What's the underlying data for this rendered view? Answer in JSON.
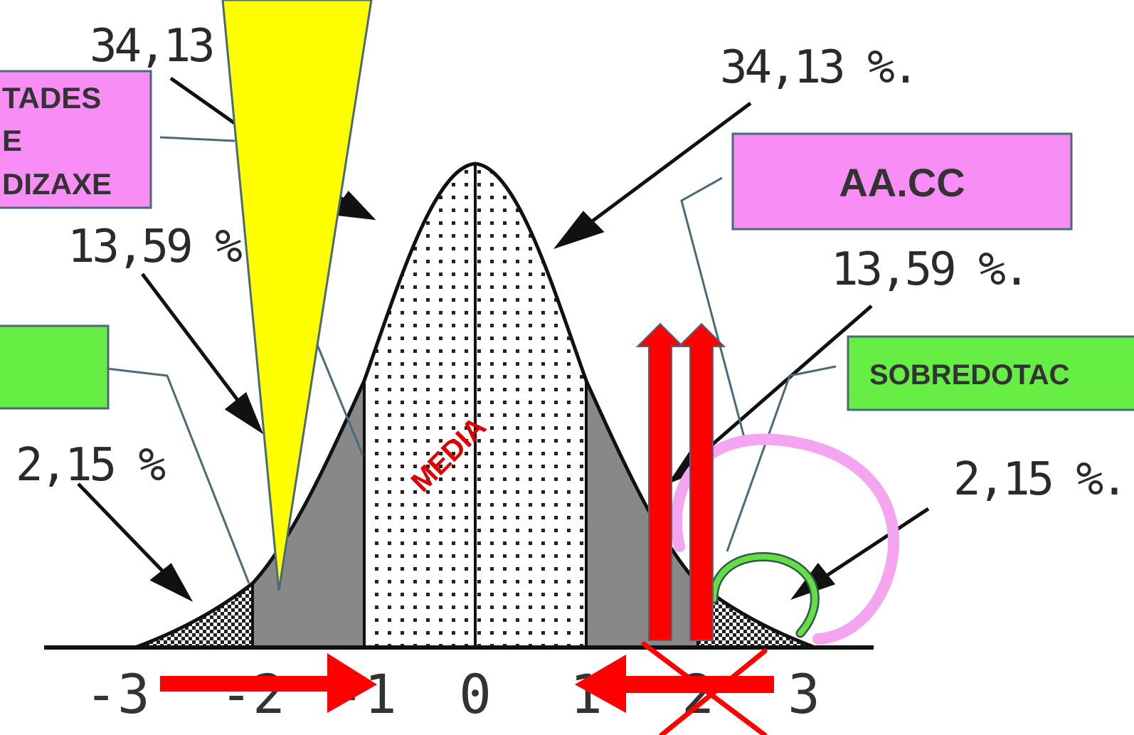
{
  "percent_labels": {
    "top_left": "34,13",
    "top_right": "34,13 %.",
    "mid_left": "13,59 %.",
    "mid_right": "13,59 %.",
    "low_left": "2,15 %",
    "low_right": "2,15 %."
  },
  "x_axis_ticks": [
    "-3",
    "-2",
    "-1",
    "0",
    "1",
    "2",
    "3"
  ],
  "boxes": {
    "learning_difficulties": [
      "TADES",
      "E",
      "DIZAXE"
    ],
    "aacc": "AA.CC",
    "gifted": "SOBREDOTAC"
  },
  "center_label": "MEDIA",
  "colors": {
    "pink_box": "#f88ef5",
    "green_box": "#66ee44",
    "yellow_wedge": "#ffff00",
    "red_arrow": "#ff0000",
    "pink_arc": "#f5a5ef",
    "green_arc": "#66dd44",
    "leader_line": "#4a6a7a"
  }
}
